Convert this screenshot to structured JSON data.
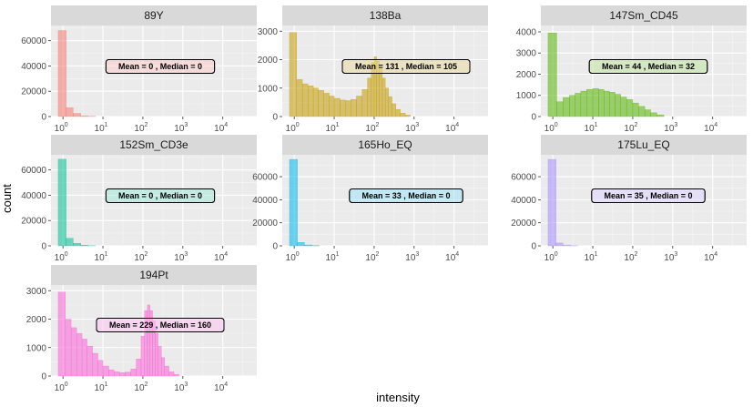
{
  "chart_data": {
    "type": "histogram-facets",
    "xlabel": "intensity",
    "ylabel": "count",
    "x_scale": "log10",
    "x_ticks": [
      1,
      10,
      100,
      1000,
      10000
    ],
    "x_tick_labels": [
      {
        "base": "10",
        "exp": "0"
      },
      {
        "base": "10",
        "exp": "1"
      },
      {
        "base": "10",
        "exp": "2"
      },
      {
        "base": "10",
        "exp": "3"
      },
      {
        "base": "10",
        "exp": "4"
      }
    ],
    "panels": [
      {
        "name": "89Y",
        "color": "#F8766D",
        "ylim": [
          0,
          72000
        ],
        "yticks": [
          0,
          20000,
          40000,
          60000
        ],
        "annotation": "Mean = 0 , Median = 0",
        "bins": [
          [
            0.76,
            1.2,
            68000
          ],
          [
            1.2,
            1.8,
            7000
          ],
          [
            1.8,
            2.8,
            2500
          ],
          [
            2.8,
            4.2,
            600
          ],
          [
            4.2,
            6.5,
            150
          ]
        ]
      },
      {
        "name": "138Ba",
        "color": "#C49A00",
        "ylim": [
          0,
          3200
        ],
        "yticks": [
          0,
          1000,
          2000,
          3000
        ],
        "annotation": "Mean = 131 , Median = 105",
        "bins": [
          [
            0.76,
            1.15,
            2950
          ],
          [
            1.15,
            1.6,
            1300
          ],
          [
            1.6,
            2.2,
            1150
          ],
          [
            2.2,
            3.0,
            1080
          ],
          [
            3.0,
            4.0,
            1000
          ],
          [
            4.0,
            5.5,
            920
          ],
          [
            5.5,
            7.5,
            820
          ],
          [
            7.5,
            10,
            720
          ],
          [
            10,
            14,
            640
          ],
          [
            14,
            19,
            580
          ],
          [
            19,
            26,
            560
          ],
          [
            26,
            36,
            600
          ],
          [
            36,
            50,
            720
          ],
          [
            50,
            68,
            950
          ],
          [
            68,
            85,
            1350
          ],
          [
            85,
            100,
            1900
          ],
          [
            100,
            115,
            2100
          ],
          [
            115,
            135,
            1950
          ],
          [
            135,
            160,
            1700
          ],
          [
            160,
            190,
            1350
          ],
          [
            190,
            230,
            1000
          ],
          [
            230,
            280,
            700
          ],
          [
            280,
            350,
            450
          ],
          [
            350,
            450,
            250
          ],
          [
            450,
            600,
            120
          ],
          [
            600,
            800,
            50
          ]
        ]
      },
      {
        "name": "147Sm_CD45",
        "color": "#53B400",
        "ylim": [
          0,
          4300
        ],
        "yticks": [
          0,
          1000,
          2000,
          3000,
          4000
        ],
        "annotation": "Mean = 44 , Median = 32",
        "bins": [
          [
            0.76,
            1.25,
            3950
          ],
          [
            1.25,
            1.8,
            700
          ],
          [
            1.8,
            2.6,
            900
          ],
          [
            2.6,
            3.6,
            1000
          ],
          [
            3.6,
            5.0,
            1100
          ],
          [
            5.0,
            7.0,
            1200
          ],
          [
            7.0,
            10,
            1280
          ],
          [
            10,
            14,
            1320
          ],
          [
            14,
            19,
            1280
          ],
          [
            19,
            26,
            1200
          ],
          [
            26,
            36,
            1150
          ],
          [
            36,
            50,
            1050
          ],
          [
            50,
            70,
            920
          ],
          [
            70,
            100,
            800
          ],
          [
            100,
            140,
            640
          ],
          [
            140,
            200,
            480
          ],
          [
            200,
            280,
            320
          ],
          [
            280,
            400,
            180
          ],
          [
            400,
            600,
            80
          ]
        ]
      },
      {
        "name": "152Sm_CD3e",
        "color": "#00C094",
        "ylim": [
          0,
          72000
        ],
        "yticks": [
          0,
          20000,
          40000,
          60000
        ],
        "annotation": "Mean = 0 , Median = 0",
        "bins": [
          [
            0.76,
            1.2,
            68500
          ],
          [
            1.2,
            1.8,
            6000
          ],
          [
            1.8,
            2.8,
            2000
          ],
          [
            2.8,
            4.2,
            500
          ],
          [
            4.2,
            6.5,
            120
          ]
        ]
      },
      {
        "name": "165Ho_EQ",
        "color": "#00B6EB",
        "ylim": [
          0,
          79000
        ],
        "yticks": [
          0,
          20000,
          40000,
          60000
        ],
        "annotation": "Mean = 33 , Median = 0",
        "bins": [
          [
            0.76,
            1.2,
            75000
          ],
          [
            1.2,
            1.8,
            3000
          ],
          [
            1.8,
            2.8,
            800
          ],
          [
            2.8,
            4.2,
            200
          ]
        ]
      },
      {
        "name": "175Lu_EQ",
        "color": "#A58AFF",
        "ylim": [
          0,
          79000
        ],
        "yticks": [
          0,
          20000,
          40000,
          60000
        ],
        "annotation": "Mean = 35 , Median = 0",
        "bins": [
          [
            0.76,
            1.2,
            75000
          ],
          [
            1.2,
            1.8,
            2500
          ],
          [
            1.8,
            2.8,
            700
          ],
          [
            2.8,
            4.2,
            150
          ]
        ]
      },
      {
        "name": "194Pt",
        "color": "#FB61D7",
        "ylim": [
          0,
          3200
        ],
        "yticks": [
          0,
          1000,
          2000,
          3000
        ],
        "annotation": "Mean = 229 , Median = 160",
        "bins": [
          [
            0.76,
            1.15,
            2950
          ],
          [
            1.15,
            1.6,
            2000
          ],
          [
            1.6,
            2.2,
            1700
          ],
          [
            2.2,
            3.0,
            1500
          ],
          [
            3.0,
            4.0,
            1300
          ],
          [
            4.0,
            5.5,
            1050
          ],
          [
            5.5,
            7.5,
            800
          ],
          [
            7.5,
            10,
            550
          ],
          [
            10,
            14,
            350
          ],
          [
            14,
            19,
            220
          ],
          [
            19,
            26,
            150
          ],
          [
            26,
            36,
            120
          ],
          [
            36,
            50,
            140
          ],
          [
            50,
            68,
            250
          ],
          [
            68,
            90,
            600
          ],
          [
            90,
            110,
            1400
          ],
          [
            110,
            130,
            2300
          ],
          [
            130,
            150,
            2500
          ],
          [
            150,
            175,
            2300
          ],
          [
            175,
            205,
            1950
          ],
          [
            205,
            240,
            1500
          ],
          [
            240,
            290,
            1050
          ],
          [
            290,
            350,
            650
          ],
          [
            350,
            450,
            350
          ],
          [
            450,
            600,
            150
          ],
          [
            600,
            800,
            60
          ]
        ]
      }
    ]
  }
}
